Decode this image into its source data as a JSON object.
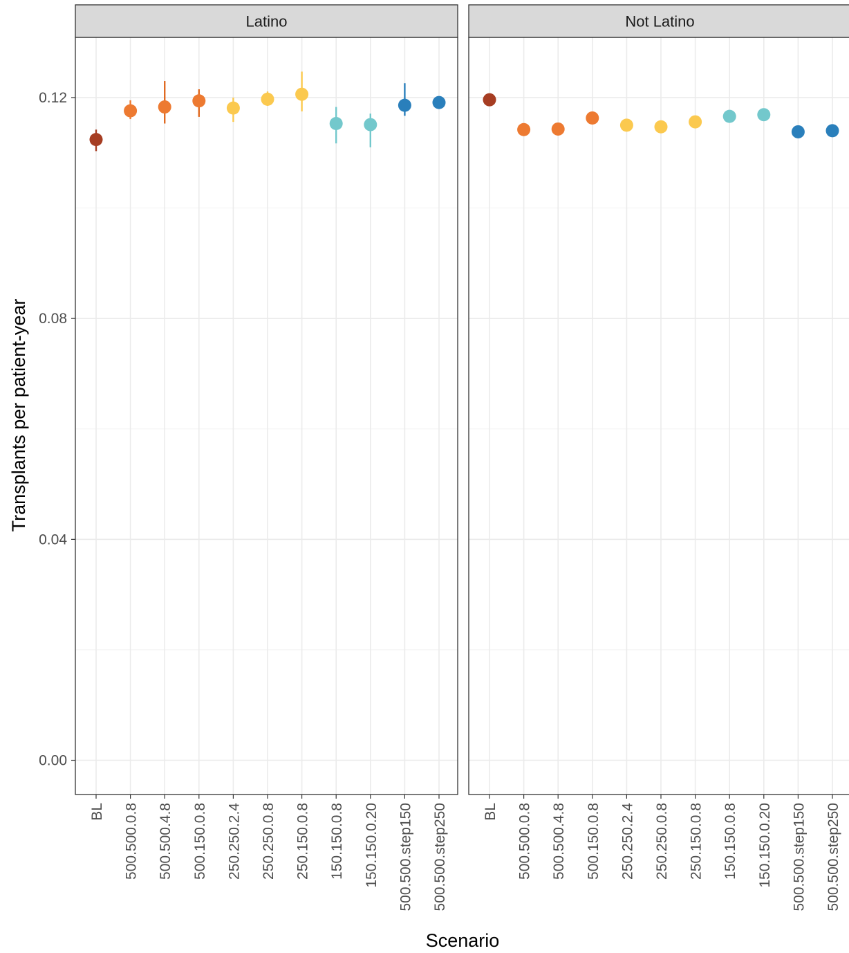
{
  "chart_data": {
    "type": "scatter",
    "ylabel": "Transplants per patient-year",
    "xlabel": "Scenario",
    "ylim": [
      -0.0062,
      0.1309
    ],
    "yticks": [
      0.0,
      0.04,
      0.08,
      0.12
    ],
    "ytick_labels": [
      "0.00",
      "0.04",
      "0.08",
      "0.12"
    ],
    "grid": true,
    "categories": [
      "BL",
      "500.500.0.8",
      "500.500.4.8",
      "500.150.0.8",
      "250.250.2.4",
      "250.250.0.8",
      "250.150.0.8",
      "150.150.0.8",
      "150.150.0.20",
      "500.500.step150",
      "500.500.step250"
    ],
    "point_colors": [
      "#a63d22",
      "#ed7a31",
      "#ed7a31",
      "#ed7a31",
      "#fbc94f",
      "#fbc94f",
      "#fbc94f",
      "#73c8cc",
      "#73c8cc",
      "#2a7fbb",
      "#2a7fbb"
    ],
    "error_colors": [
      "#a63d22",
      "#ed7a31",
      "#e06a22",
      "#e06a22",
      "#fbc94f",
      "#fbc94f",
      "#fbc94f",
      "#73c8cc",
      "#73c8cc",
      "#2a7fbb",
      "#2a7fbb"
    ],
    "panels": [
      {
        "strip": "Latino",
        "values": [
          0.1124,
          0.1176,
          0.1183,
          0.1194,
          0.1181,
          0.1197,
          0.1206,
          0.1153,
          0.1151,
          0.1186,
          0.1191
        ],
        "lower": [
          0.1103,
          0.1161,
          0.1153,
          0.1165,
          0.1156,
          0.1185,
          0.1175,
          0.1117,
          0.111,
          0.1167,
          null
        ],
        "upper": [
          0.1142,
          0.1195,
          0.123,
          0.1215,
          0.12,
          0.1211,
          0.1247,
          0.1183,
          0.1171,
          0.1226,
          null
        ]
      },
      {
        "strip": "Not Latino",
        "values": [
          0.1196,
          0.1142,
          0.1143,
          0.1163,
          0.115,
          0.1147,
          0.1156,
          0.1166,
          0.1169,
          0.1138,
          0.114
        ],
        "lower": [
          null,
          null,
          null,
          null,
          null,
          null,
          null,
          null,
          null,
          null,
          null
        ],
        "upper": [
          null,
          null,
          null,
          null,
          null,
          null,
          null,
          null,
          null,
          null,
          null
        ]
      }
    ]
  }
}
